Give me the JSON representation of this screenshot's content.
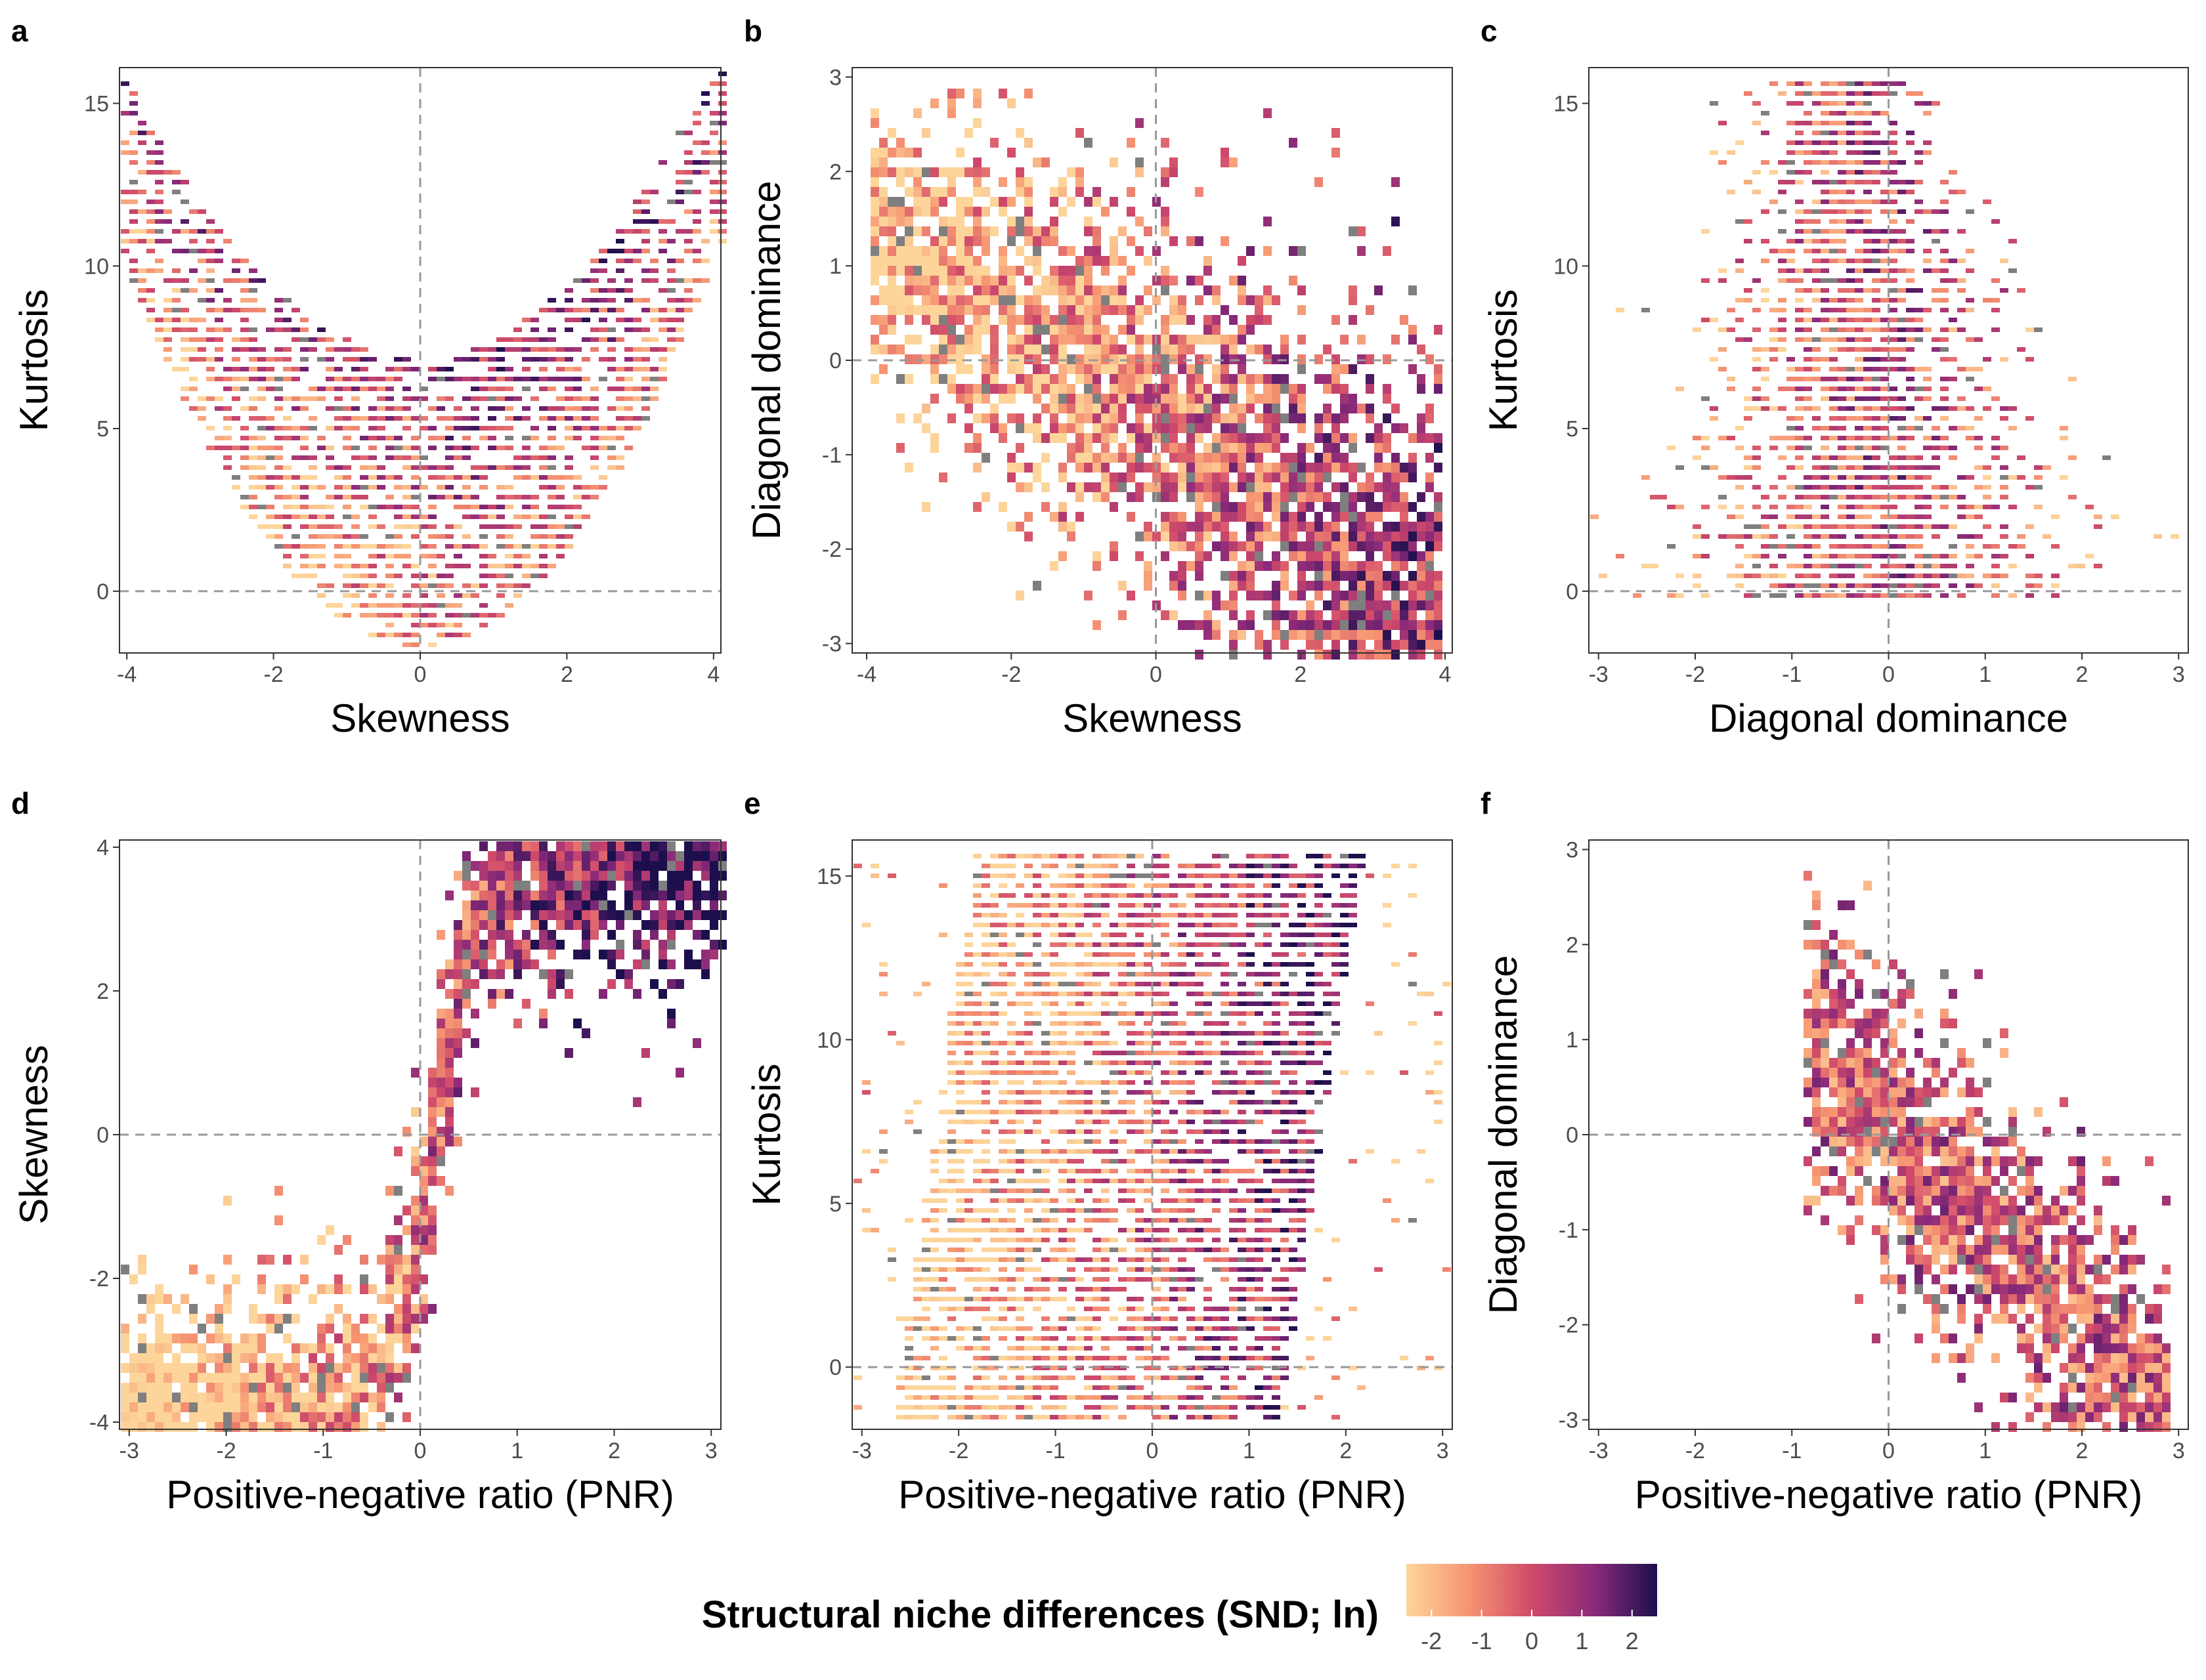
{
  "chart_data": [
    {
      "id": "a",
      "type": "heatmap",
      "panel_letter": "a",
      "xlabel": "Skewness",
      "ylabel": "Kurtosis",
      "xlim": [
        -4.1,
        4.1
      ],
      "ylim": [
        -1.9,
        16.1
      ],
      "xticks": [
        -4,
        -2,
        0,
        2,
        4
      ],
      "yticks": [
        0,
        5,
        10,
        15
      ],
      "ref_lines": {
        "x": 0,
        "y": 0
      },
      "shape": "v_parabola"
    },
    {
      "id": "b",
      "type": "heatmap",
      "panel_letter": "b",
      "xlabel": "Skewness",
      "ylabel": "Diagonal dominance",
      "xlim": [
        -4.2,
        4.1
      ],
      "ylim": [
        -3.1,
        3.1
      ],
      "xticks": [
        -4,
        -2,
        0,
        2,
        4
      ],
      "yticks": [
        -3,
        -2,
        -1,
        0,
        1,
        2,
        3
      ],
      "ref_lines": {
        "x": 0,
        "y": 0
      },
      "shape": "descending_cloud"
    },
    {
      "id": "c",
      "type": "heatmap",
      "panel_letter": "c",
      "xlabel": "Diagonal dominance",
      "ylabel": "Kurtosis",
      "xlim": [
        -3.1,
        3.1
      ],
      "ylim": [
        -1.9,
        16.1
      ],
      "xticks": [
        -3,
        -2,
        -1,
        0,
        1,
        2,
        3
      ],
      "yticks": [
        0,
        5,
        10,
        15
      ],
      "ref_lines": {
        "x": 0,
        "y": 0
      },
      "shape": "vertical_band"
    },
    {
      "id": "d",
      "type": "heatmap",
      "panel_letter": "d",
      "xlabel": "Positive-negative ratio (PNR)",
      "ylabel": "Skewness",
      "xlim": [
        -3.1,
        3.1
      ],
      "ylim": [
        -4.1,
        4.1
      ],
      "xticks": [
        -3,
        -2,
        -1,
        0,
        1,
        2,
        3
      ],
      "yticks": [
        -4,
        -2,
        0,
        2,
        4
      ],
      "ref_lines": {
        "x": 0,
        "y": 0
      },
      "shape": "sigmoid"
    },
    {
      "id": "e",
      "type": "heatmap",
      "panel_letter": "e",
      "xlabel": "Positive-negative ratio (PNR)",
      "ylabel": "Kurtosis",
      "xlim": [
        -3.1,
        3.1
      ],
      "ylim": [
        -1.9,
        16.1
      ],
      "xticks": [
        -3,
        -2,
        -1,
        0,
        1,
        2,
        3
      ],
      "yticks": [
        0,
        5,
        10,
        15
      ],
      "ref_lines": {
        "x": 0,
        "y": 0
      },
      "shape": "vertical_band_gradient"
    },
    {
      "id": "f",
      "type": "heatmap",
      "panel_letter": "f",
      "xlabel": "Positive-negative ratio (PNR)",
      "ylabel": "Diagonal dominance",
      "xlim": [
        -3.1,
        3.1
      ],
      "ylim": [
        -3.1,
        3.1
      ],
      "xticks": [
        -3,
        -2,
        -1,
        0,
        1,
        2,
        3
      ],
      "yticks": [
        -3,
        -2,
        -1,
        0,
        1,
        2,
        3
      ],
      "ref_lines": {
        "x": 0,
        "y": 0
      },
      "shape": "descending_diagonal"
    }
  ],
  "legend": {
    "title": "Structural niche differences (SND; ln)",
    "ticks": [
      "-2",
      "-1",
      "0",
      "1",
      "2"
    ],
    "range": [
      -2.5,
      2.5
    ],
    "tick_values": [
      -2,
      -1,
      0,
      1,
      2
    ],
    "colors": [
      "#fcfdbf",
      "#feb078",
      "#f1605d",
      "#b5367a",
      "#721f81",
      "#2d1160",
      "#000004"
    ],
    "na_color": "#808080"
  },
  "colors": {
    "reference_line": "#999999",
    "panel_border": "#333333"
  }
}
